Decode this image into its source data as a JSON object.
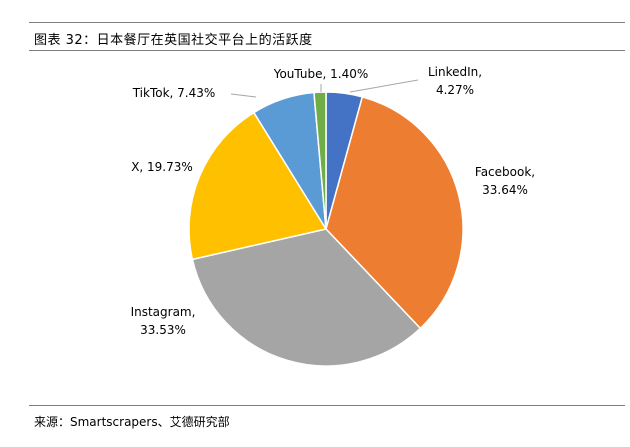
{
  "figure_title": "图表 32：日本餐厅在英国社交平台上的活跃度",
  "source_note": "来源：Smartscrapers、艾德研究部",
  "chart_data": {
    "type": "pie",
    "title": "",
    "slices": [
      {
        "name": "LinkedIn",
        "value": 4.27,
        "label": "4.27%",
        "color": "#4472C4"
      },
      {
        "name": "Facebook",
        "value": 33.64,
        "label": "33.64%",
        "color": "#ED7D31"
      },
      {
        "name": "Instagram",
        "value": 33.53,
        "label": "33.53%",
        "color": "#A5A5A5"
      },
      {
        "name": "X",
        "value": 19.73,
        "label": "19.73%",
        "color": "#FFC000"
      },
      {
        "name": "TikTok",
        "value": 7.43,
        "label": "7.43%",
        "color": "#5B9BD5"
      },
      {
        "name": "YouTube",
        "value": 1.4,
        "label": "1.40%",
        "color": "#70AD47"
      }
    ],
    "start": "12 o'clock",
    "direction": "clockwise",
    "legend": "none (labels beside slices)"
  }
}
